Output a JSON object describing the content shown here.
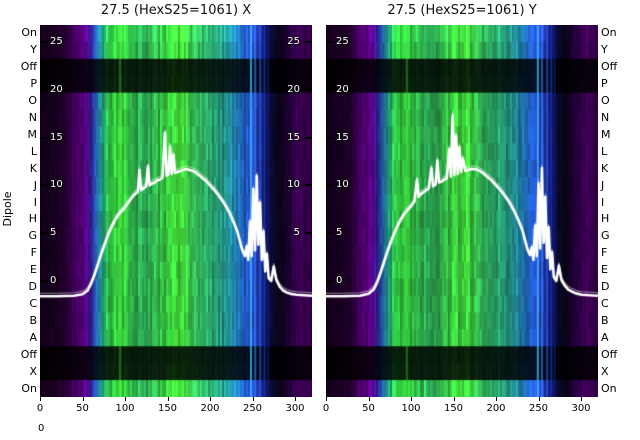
{
  "figure": {
    "left_axis_label": "Dipole",
    "channel_labels": [
      "On",
      "Y",
      "Off",
      "P",
      "O",
      "N",
      "M",
      "L",
      "K",
      "J",
      "I",
      "H",
      "G",
      "F",
      "E",
      "D",
      "C",
      "B",
      "A",
      "Off",
      "X",
      "On"
    ],
    "corner_label": "0",
    "background": "#ffffff",
    "line_color": "#ffffff"
  },
  "chart_data": [
    {
      "type": "heatmap",
      "title": "27.5 (HexS25=1061) X",
      "x_range": [
        0,
        320
      ],
      "x_ticks": [
        0,
        50,
        100,
        150,
        200,
        250,
        300
      ],
      "inner_y_ticks": [
        25,
        20,
        15,
        10,
        5,
        0
      ],
      "inner_y_ticks_right": [
        25,
        20,
        15,
        10,
        5
      ],
      "show_right_ticks": true,
      "y_scale": {
        "zero_frac": 0.688,
        "unit_frac": 0.0257
      },
      "rows": [
        {
          "label": "On",
          "factor": 1.1
        },
        {
          "label": "Y",
          "factor": 1.0
        },
        {
          "label": "Off",
          "factor": 0.15
        },
        {
          "label": "P",
          "factor": 0.17
        },
        {
          "label": "O",
          "factor": 0.95
        },
        {
          "label": "N",
          "factor": 0.95
        },
        {
          "label": "M",
          "factor": 0.95
        },
        {
          "label": "L",
          "factor": 0.95
        },
        {
          "label": "K",
          "factor": 0.95
        },
        {
          "label": "J",
          "factor": 0.95
        },
        {
          "label": "I",
          "factor": 0.95
        },
        {
          "label": "H",
          "factor": 0.95
        },
        {
          "label": "G",
          "factor": 0.95
        },
        {
          "label": "F",
          "factor": 0.95
        },
        {
          "label": "E",
          "factor": 0.95
        },
        {
          "label": "D",
          "factor": 0.95
        },
        {
          "label": "C",
          "factor": 0.95
        },
        {
          "label": "B",
          "factor": 0.95
        },
        {
          "label": "A",
          "factor": 0.95
        },
        {
          "label": "Off",
          "factor": 0.15
        },
        {
          "label": "X",
          "factor": 0.17
        },
        {
          "label": "On",
          "factor": 1.05
        }
      ],
      "color_stops": [
        [
          0,
          "#120018"
        ],
        [
          25,
          "#1d0026"
        ],
        [
          38,
          "#41005c"
        ],
        [
          50,
          "#5a0080"
        ],
        [
          58,
          "#3c1690"
        ],
        [
          64,
          "#2254b4"
        ],
        [
          72,
          "#22a384"
        ],
        [
          80,
          "#30c244"
        ],
        [
          95,
          "#3ad83a"
        ],
        [
          105,
          "#32ba4a"
        ],
        [
          120,
          "#2ca654"
        ],
        [
          135,
          "#32b24c"
        ],
        [
          150,
          "#3ace3e"
        ],
        [
          165,
          "#44dc38"
        ],
        [
          180,
          "#36ba56"
        ],
        [
          195,
          "#2caa66"
        ],
        [
          210,
          "#269a7a"
        ],
        [
          225,
          "#2188a2"
        ],
        [
          238,
          "#2062c2"
        ],
        [
          248,
          "#2a4ada"
        ],
        [
          256,
          "#2232a4"
        ],
        [
          264,
          "#121264"
        ],
        [
          272,
          "#0b092a"
        ],
        [
          282,
          "#090516"
        ],
        [
          292,
          "#22003a"
        ],
        [
          304,
          "#3e0056"
        ],
        [
          320,
          "#2c003e"
        ]
      ],
      "vlines": [
        {
          "x": 93,
          "color": "#58e850",
          "alpha": 0.35
        },
        {
          "x": 247,
          "color": "#40d8ff",
          "alpha": 0.7
        },
        {
          "x": 252,
          "color": "#3898ff",
          "alpha": 0.55
        },
        {
          "x": 258,
          "color": "#2468e8",
          "alpha": 0.6
        },
        {
          "x": 263,
          "color": "#1840c8",
          "alpha": 0.65
        },
        {
          "x": 267,
          "color": "#101a78",
          "alpha": 0.7
        }
      ],
      "overlay_line": {
        "color": "#ffffff",
        "points": [
          [
            0,
            -1.6
          ],
          [
            20,
            -1.6
          ],
          [
            40,
            -1.55
          ],
          [
            50,
            -1.4
          ],
          [
            56,
            -1.0
          ],
          [
            60,
            -0.3
          ],
          [
            64,
            0.6
          ],
          [
            68,
            1.7
          ],
          [
            72,
            2.8
          ],
          [
            76,
            3.8
          ],
          [
            80,
            4.8
          ],
          [
            84,
            5.6
          ],
          [
            88,
            6.3
          ],
          [
            92,
            6.9
          ],
          [
            96,
            7.3
          ],
          [
            100,
            7.7
          ],
          [
            104,
            8.2
          ],
          [
            108,
            8.7
          ],
          [
            112,
            9.1
          ],
          [
            115,
            9.3
          ],
          [
            117,
            11.6
          ],
          [
            119,
            9.5
          ],
          [
            122,
            9.7
          ],
          [
            125,
            9.9
          ],
          [
            127,
            12.0
          ],
          [
            129,
            10.0
          ],
          [
            132,
            10.2
          ],
          [
            135,
            10.3
          ],
          [
            138,
            10.5
          ],
          [
            141,
            10.6
          ],
          [
            144,
            10.8
          ],
          [
            147,
            15.5
          ],
          [
            149,
            11.0
          ],
          [
            151,
            11.1
          ],
          [
            153,
            14.0
          ],
          [
            155,
            11.2
          ],
          [
            157,
            13.2
          ],
          [
            159,
            11.3
          ],
          [
            162,
            11.4
          ],
          [
            165,
            11.5
          ],
          [
            168,
            11.6
          ],
          [
            172,
            11.7
          ],
          [
            176,
            11.6
          ],
          [
            180,
            11.5
          ],
          [
            184,
            11.3
          ],
          [
            188,
            11.0
          ],
          [
            192,
            10.7
          ],
          [
            196,
            10.4
          ],
          [
            200,
            10.0
          ],
          [
            204,
            9.6
          ],
          [
            208,
            9.2
          ],
          [
            212,
            8.7
          ],
          [
            216,
            8.2
          ],
          [
            220,
            7.6
          ],
          [
            224,
            6.9
          ],
          [
            228,
            6.1
          ],
          [
            232,
            5.2
          ],
          [
            235,
            4.2
          ],
          [
            238,
            3.2
          ],
          [
            241,
            2.6
          ],
          [
            243,
            3.6
          ],
          [
            245,
            2.2
          ],
          [
            247,
            6.2
          ],
          [
            249,
            2.6
          ],
          [
            251,
            9.6
          ],
          [
            253,
            3.2
          ],
          [
            255,
            11.0
          ],
          [
            257,
            3.8
          ],
          [
            259,
            8.2
          ],
          [
            261,
            2.2
          ],
          [
            263,
            5.2
          ],
          [
            265,
            1.0
          ],
          [
            267,
            2.8
          ],
          [
            269,
            0.3
          ],
          [
            272,
            0.0
          ],
          [
            275,
            1.5
          ],
          [
            278,
            0.1
          ],
          [
            282,
            -0.6
          ],
          [
            286,
            -1.0
          ],
          [
            290,
            -1.2
          ],
          [
            295,
            -1.35
          ],
          [
            302,
            -1.45
          ],
          [
            310,
            -1.5
          ],
          [
            320,
            -1.55
          ]
        ]
      }
    },
    {
      "type": "heatmap",
      "title": "27.5 (HexS25=1061) Y",
      "x_range": [
        0,
        320
      ],
      "x_ticks": [
        0,
        50,
        100,
        150,
        200,
        250,
        300
      ],
      "inner_y_ticks": [
        25,
        20,
        15,
        10,
        5,
        0
      ],
      "inner_y_ticks_right": [],
      "show_right_ticks": false,
      "y_scale": {
        "zero_frac": 0.688,
        "unit_frac": 0.0257
      },
      "rows": [
        {
          "label": "On",
          "factor": 1.1
        },
        {
          "label": "Y",
          "factor": 1.0
        },
        {
          "label": "Off",
          "factor": 0.15
        },
        {
          "label": "P",
          "factor": 0.17
        },
        {
          "label": "O",
          "factor": 0.95
        },
        {
          "label": "N",
          "factor": 0.95
        },
        {
          "label": "M",
          "factor": 0.95
        },
        {
          "label": "L",
          "factor": 0.95
        },
        {
          "label": "K",
          "factor": 0.95
        },
        {
          "label": "J",
          "factor": 0.95
        },
        {
          "label": "I",
          "factor": 0.95
        },
        {
          "label": "H",
          "factor": 0.95
        },
        {
          "label": "G",
          "factor": 0.95
        },
        {
          "label": "F",
          "factor": 0.95
        },
        {
          "label": "E",
          "factor": 0.95
        },
        {
          "label": "D",
          "factor": 0.95
        },
        {
          "label": "C",
          "factor": 0.95
        },
        {
          "label": "B",
          "factor": 0.95
        },
        {
          "label": "A",
          "factor": 0.95
        },
        {
          "label": "Off",
          "factor": 0.15
        },
        {
          "label": "X",
          "factor": 0.17
        },
        {
          "label": "On",
          "factor": 1.05
        }
      ],
      "color_stops": [
        [
          0,
          "#120018"
        ],
        [
          25,
          "#1d0026"
        ],
        [
          38,
          "#41005c"
        ],
        [
          50,
          "#5a0080"
        ],
        [
          58,
          "#3c1690"
        ],
        [
          64,
          "#2254b4"
        ],
        [
          72,
          "#22a384"
        ],
        [
          80,
          "#30c244"
        ],
        [
          95,
          "#36d23e"
        ],
        [
          105,
          "#32ba4a"
        ],
        [
          120,
          "#2ca654"
        ],
        [
          135,
          "#32b24c"
        ],
        [
          150,
          "#3ed240"
        ],
        [
          165,
          "#40d83a"
        ],
        [
          180,
          "#36ba56"
        ],
        [
          195,
          "#2caa66"
        ],
        [
          210,
          "#269a7a"
        ],
        [
          225,
          "#2188a2"
        ],
        [
          238,
          "#2062c2"
        ],
        [
          248,
          "#2a4ada"
        ],
        [
          256,
          "#2232a4"
        ],
        [
          264,
          "#121264"
        ],
        [
          272,
          "#0b092a"
        ],
        [
          282,
          "#090516"
        ],
        [
          292,
          "#22003a"
        ],
        [
          304,
          "#3e0056"
        ],
        [
          320,
          "#2c003e"
        ]
      ],
      "vlines": [
        {
          "x": 94,
          "color": "#58e850",
          "alpha": 0.35
        },
        {
          "x": 248,
          "color": "#40d8ff",
          "alpha": 0.7
        },
        {
          "x": 253,
          "color": "#3898ff",
          "alpha": 0.55
        },
        {
          "x": 259,
          "color": "#2468e8",
          "alpha": 0.6
        },
        {
          "x": 264,
          "color": "#1840c8",
          "alpha": 0.65
        },
        {
          "x": 268,
          "color": "#101a78",
          "alpha": 0.7
        }
      ],
      "overlay_line": {
        "color": "#ffffff",
        "points": [
          [
            0,
            -1.6
          ],
          [
            20,
            -1.6
          ],
          [
            40,
            -1.55
          ],
          [
            50,
            -1.35
          ],
          [
            56,
            -0.9
          ],
          [
            60,
            -0.2
          ],
          [
            64,
            0.8
          ],
          [
            68,
            1.9
          ],
          [
            72,
            3.0
          ],
          [
            76,
            4.0
          ],
          [
            80,
            4.9
          ],
          [
            84,
            5.7
          ],
          [
            88,
            6.4
          ],
          [
            92,
            7.0
          ],
          [
            96,
            7.4
          ],
          [
            100,
            7.8
          ],
          [
            104,
            8.3
          ],
          [
            107,
            10.6
          ],
          [
            109,
            8.8
          ],
          [
            112,
            9.1
          ],
          [
            115,
            9.3
          ],
          [
            118,
            9.5
          ],
          [
            121,
            9.7
          ],
          [
            124,
            11.8
          ],
          [
            126,
            9.9
          ],
          [
            129,
            10.1
          ],
          [
            131,
            12.6
          ],
          [
            133,
            10.3
          ],
          [
            136,
            10.4
          ],
          [
            139,
            10.6
          ],
          [
            142,
            10.7
          ],
          [
            145,
            13.8
          ],
          [
            147,
            10.9
          ],
          [
            149,
            17.3
          ],
          [
            151,
            11.1
          ],
          [
            153,
            15.2
          ],
          [
            155,
            11.2
          ],
          [
            157,
            14.0
          ],
          [
            159,
            11.4
          ],
          [
            161,
            12.8
          ],
          [
            164,
            11.5
          ],
          [
            167,
            11.6
          ],
          [
            171,
            11.7
          ],
          [
            175,
            11.7
          ],
          [
            179,
            11.6
          ],
          [
            183,
            11.4
          ],
          [
            187,
            11.1
          ],
          [
            191,
            10.8
          ],
          [
            195,
            10.5
          ],
          [
            199,
            10.1
          ],
          [
            203,
            9.7
          ],
          [
            207,
            9.3
          ],
          [
            211,
            8.8
          ],
          [
            215,
            8.3
          ],
          [
            219,
            7.7
          ],
          [
            223,
            7.0
          ],
          [
            227,
            6.2
          ],
          [
            231,
            5.3
          ],
          [
            234,
            4.3
          ],
          [
            237,
            3.3
          ],
          [
            240,
            2.7
          ],
          [
            242,
            3.5
          ],
          [
            244,
            2.2
          ],
          [
            246,
            5.8
          ],
          [
            248,
            2.6
          ],
          [
            250,
            10.2
          ],
          [
            252,
            3.4
          ],
          [
            254,
            11.8
          ],
          [
            256,
            4.0
          ],
          [
            258,
            8.8
          ],
          [
            260,
            2.4
          ],
          [
            262,
            5.6
          ],
          [
            264,
            1.2
          ],
          [
            266,
            3.0
          ],
          [
            268,
            0.4
          ],
          [
            271,
            0.0
          ],
          [
            274,
            1.6
          ],
          [
            277,
            0.1
          ],
          [
            281,
            -0.5
          ],
          [
            285,
            -0.9
          ],
          [
            289,
            -1.1
          ],
          [
            294,
            -1.3
          ],
          [
            301,
            -1.45
          ],
          [
            310,
            -1.5
          ],
          [
            320,
            -1.55
          ]
        ]
      }
    }
  ]
}
